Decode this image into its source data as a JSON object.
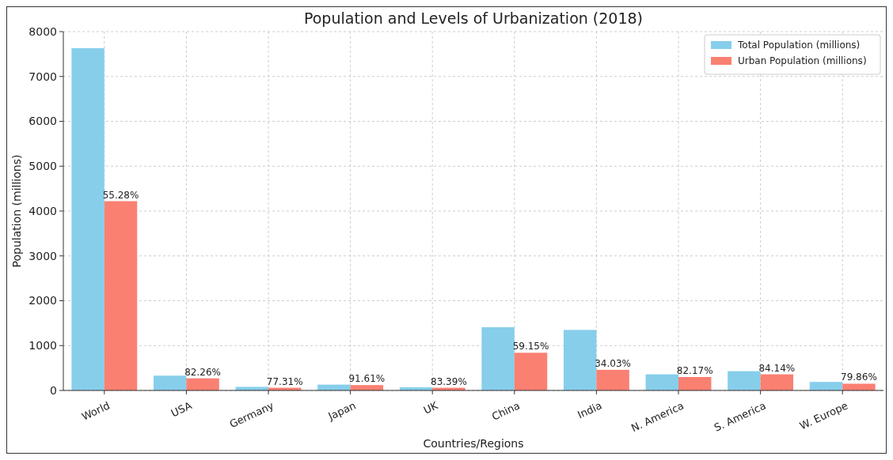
{
  "chart_data": {
    "type": "bar",
    "title": "Population and Levels of Urbanization (2018)",
    "xlabel": "Countries/Regions",
    "ylabel": "Population (millions)",
    "categories": [
      "World",
      "USA",
      "Germany",
      "Japan",
      "UK",
      "China",
      "India",
      "N. America",
      "S. America",
      "W. Europe"
    ],
    "series": [
      {
        "name": "Total Population (millions)",
        "color": "#87ceeb",
        "values": [
          7630,
          330,
          80,
          130,
          70,
          1410,
          1350,
          360,
          430,
          190
        ]
      },
      {
        "name": "Urban Population (millions)",
        "color": "#fa8072",
        "values": [
          4220,
          270,
          60,
          120,
          60,
          840,
          460,
          300,
          360,
          150
        ]
      }
    ],
    "annotations": [
      {
        "text": "55.28%",
        "x": "World",
        "y": 4220
      },
      {
        "text": "82.26%",
        "x": "USA",
        "y": 270
      },
      {
        "text": "77.31%",
        "x": "Germany",
        "y": 60
      },
      {
        "text": "91.61%",
        "x": "Japan",
        "y": 120
      },
      {
        "text": "83.39%",
        "x": "UK",
        "y": 60
      },
      {
        "text": "59.15%",
        "x": "China",
        "y": 840
      },
      {
        "text": "34.03%",
        "x": "India",
        "y": 460
      },
      {
        "text": "82.17%",
        "x": "N. America",
        "y": 300
      },
      {
        "text": "84.14%",
        "x": "S. America",
        "y": 360
      },
      {
        "text": "79.86%",
        "x": "W. Europe",
        "y": 150
      }
    ],
    "ylim": [
      0,
      8000
    ],
    "yticks": [
      0,
      1000,
      2000,
      3000,
      4000,
      5000,
      6000,
      7000,
      8000
    ],
    "grid": true,
    "legend": "top right"
  }
}
